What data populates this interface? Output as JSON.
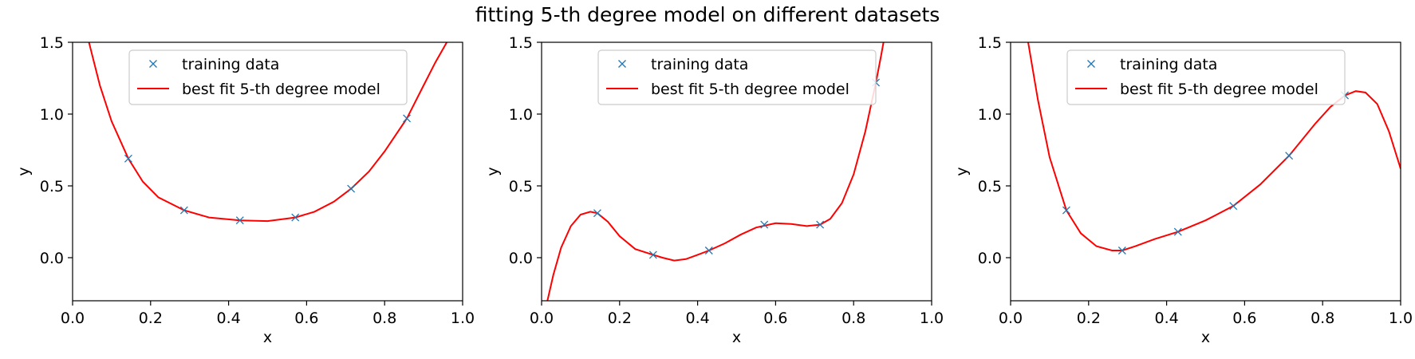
{
  "figure": {
    "title": "fitting 5-th degree model on different datasets"
  },
  "colors": {
    "data": "#1f77b4",
    "fit": "#ff0000",
    "axes": "#000000",
    "legend_border": "#cccccc"
  },
  "chart_data": [
    {
      "type": "line",
      "xlabel": "x",
      "ylabel": "y",
      "xlim": [
        0,
        1
      ],
      "ylim": [
        -0.3,
        1.5
      ],
      "xticks": [
        "0.0",
        "0.2",
        "0.4",
        "0.6",
        "0.8",
        "1.0"
      ],
      "yticks": [
        "0.0",
        "0.5",
        "1.0",
        "1.5"
      ],
      "legend": {
        "position": "upper-center",
        "entries": [
          "training data",
          "best fit 5-th degree model"
        ]
      },
      "series": [
        {
          "name": "training data",
          "kind": "scatter",
          "x": [
            0.143,
            0.286,
            0.429,
            0.571,
            0.714,
            0.857
          ],
          "y": [
            0.69,
            0.33,
            0.26,
            0.28,
            0.48,
            0.97
          ]
        },
        {
          "name": "best fit 5-th degree model",
          "kind": "line",
          "x": [
            0.0,
            0.04,
            0.07,
            0.1,
            0.143,
            0.18,
            0.22,
            0.286,
            0.35,
            0.429,
            0.5,
            0.571,
            0.62,
            0.67,
            0.714,
            0.76,
            0.8,
            0.857,
            0.9,
            0.93,
            0.97
          ],
          "y": [
            2.3,
            1.52,
            1.2,
            0.95,
            0.69,
            0.53,
            0.42,
            0.33,
            0.28,
            0.26,
            0.255,
            0.28,
            0.32,
            0.39,
            0.48,
            0.6,
            0.74,
            0.97,
            1.2,
            1.36,
            1.55
          ]
        }
      ]
    },
    {
      "type": "line",
      "xlabel": "x",
      "ylabel": "y",
      "xlim": [
        0,
        1
      ],
      "ylim": [
        -0.3,
        1.5
      ],
      "xticks": [
        "0.0",
        "0.2",
        "0.4",
        "0.6",
        "0.8",
        "1.0"
      ],
      "yticks": [
        "0.0",
        "0.5",
        "1.0",
        "1.5"
      ],
      "legend": {
        "position": "upper-center",
        "entries": [
          "training data",
          "best fit 5-th degree model"
        ]
      },
      "series": [
        {
          "name": "training data",
          "kind": "scatter",
          "x": [
            0.143,
            0.286,
            0.429,
            0.571,
            0.714,
            0.857
          ],
          "y": [
            0.31,
            0.02,
            0.05,
            0.23,
            0.23,
            1.22
          ]
        },
        {
          "name": "best fit 5-th degree model",
          "kind": "line",
          "x": [
            0.015,
            0.03,
            0.05,
            0.075,
            0.1,
            0.125,
            0.143,
            0.17,
            0.2,
            0.24,
            0.286,
            0.31,
            0.34,
            0.37,
            0.4,
            0.429,
            0.47,
            0.51,
            0.55,
            0.6,
            0.64,
            0.68,
            0.714,
            0.74,
            0.77,
            0.8,
            0.83,
            0.857,
            0.87,
            0.88
          ],
          "y": [
            -0.3,
            -0.12,
            0.07,
            0.22,
            0.3,
            0.32,
            0.31,
            0.25,
            0.15,
            0.06,
            0.02,
            0.0,
            -0.02,
            -0.01,
            0.02,
            0.05,
            0.1,
            0.16,
            0.21,
            0.24,
            0.235,
            0.22,
            0.23,
            0.27,
            0.38,
            0.58,
            0.88,
            1.22,
            1.4,
            1.55
          ]
        }
      ]
    },
    {
      "type": "line",
      "xlabel": "x",
      "ylabel": "y",
      "xlim": [
        0,
        1
      ],
      "ylim": [
        -0.3,
        1.5
      ],
      "xticks": [
        "0.0",
        "0.2",
        "0.4",
        "0.6",
        "0.8",
        "1.0"
      ],
      "yticks": [
        "0.0",
        "0.5",
        "1.0",
        "1.5"
      ],
      "legend": {
        "position": "upper-center",
        "entries": [
          "training data",
          "best fit 5-th degree model"
        ]
      },
      "series": [
        {
          "name": "training data",
          "kind": "scatter",
          "x": [
            0.143,
            0.286,
            0.429,
            0.571,
            0.714,
            0.857
          ],
          "y": [
            0.33,
            0.05,
            0.18,
            0.36,
            0.71,
            1.13
          ]
        },
        {
          "name": "best fit 5-th degree model",
          "kind": "line",
          "x": [
            0.045,
            0.07,
            0.1,
            0.143,
            0.18,
            0.22,
            0.26,
            0.286,
            0.32,
            0.37,
            0.429,
            0.5,
            0.571,
            0.64,
            0.714,
            0.78,
            0.82,
            0.857,
            0.885,
            0.91,
            0.94,
            0.97,
            1.0
          ],
          "y": [
            1.5,
            1.1,
            0.7,
            0.33,
            0.17,
            0.08,
            0.05,
            0.05,
            0.08,
            0.13,
            0.18,
            0.26,
            0.36,
            0.51,
            0.71,
            0.93,
            1.05,
            1.13,
            1.16,
            1.15,
            1.07,
            0.88,
            0.62
          ]
        }
      ]
    }
  ]
}
